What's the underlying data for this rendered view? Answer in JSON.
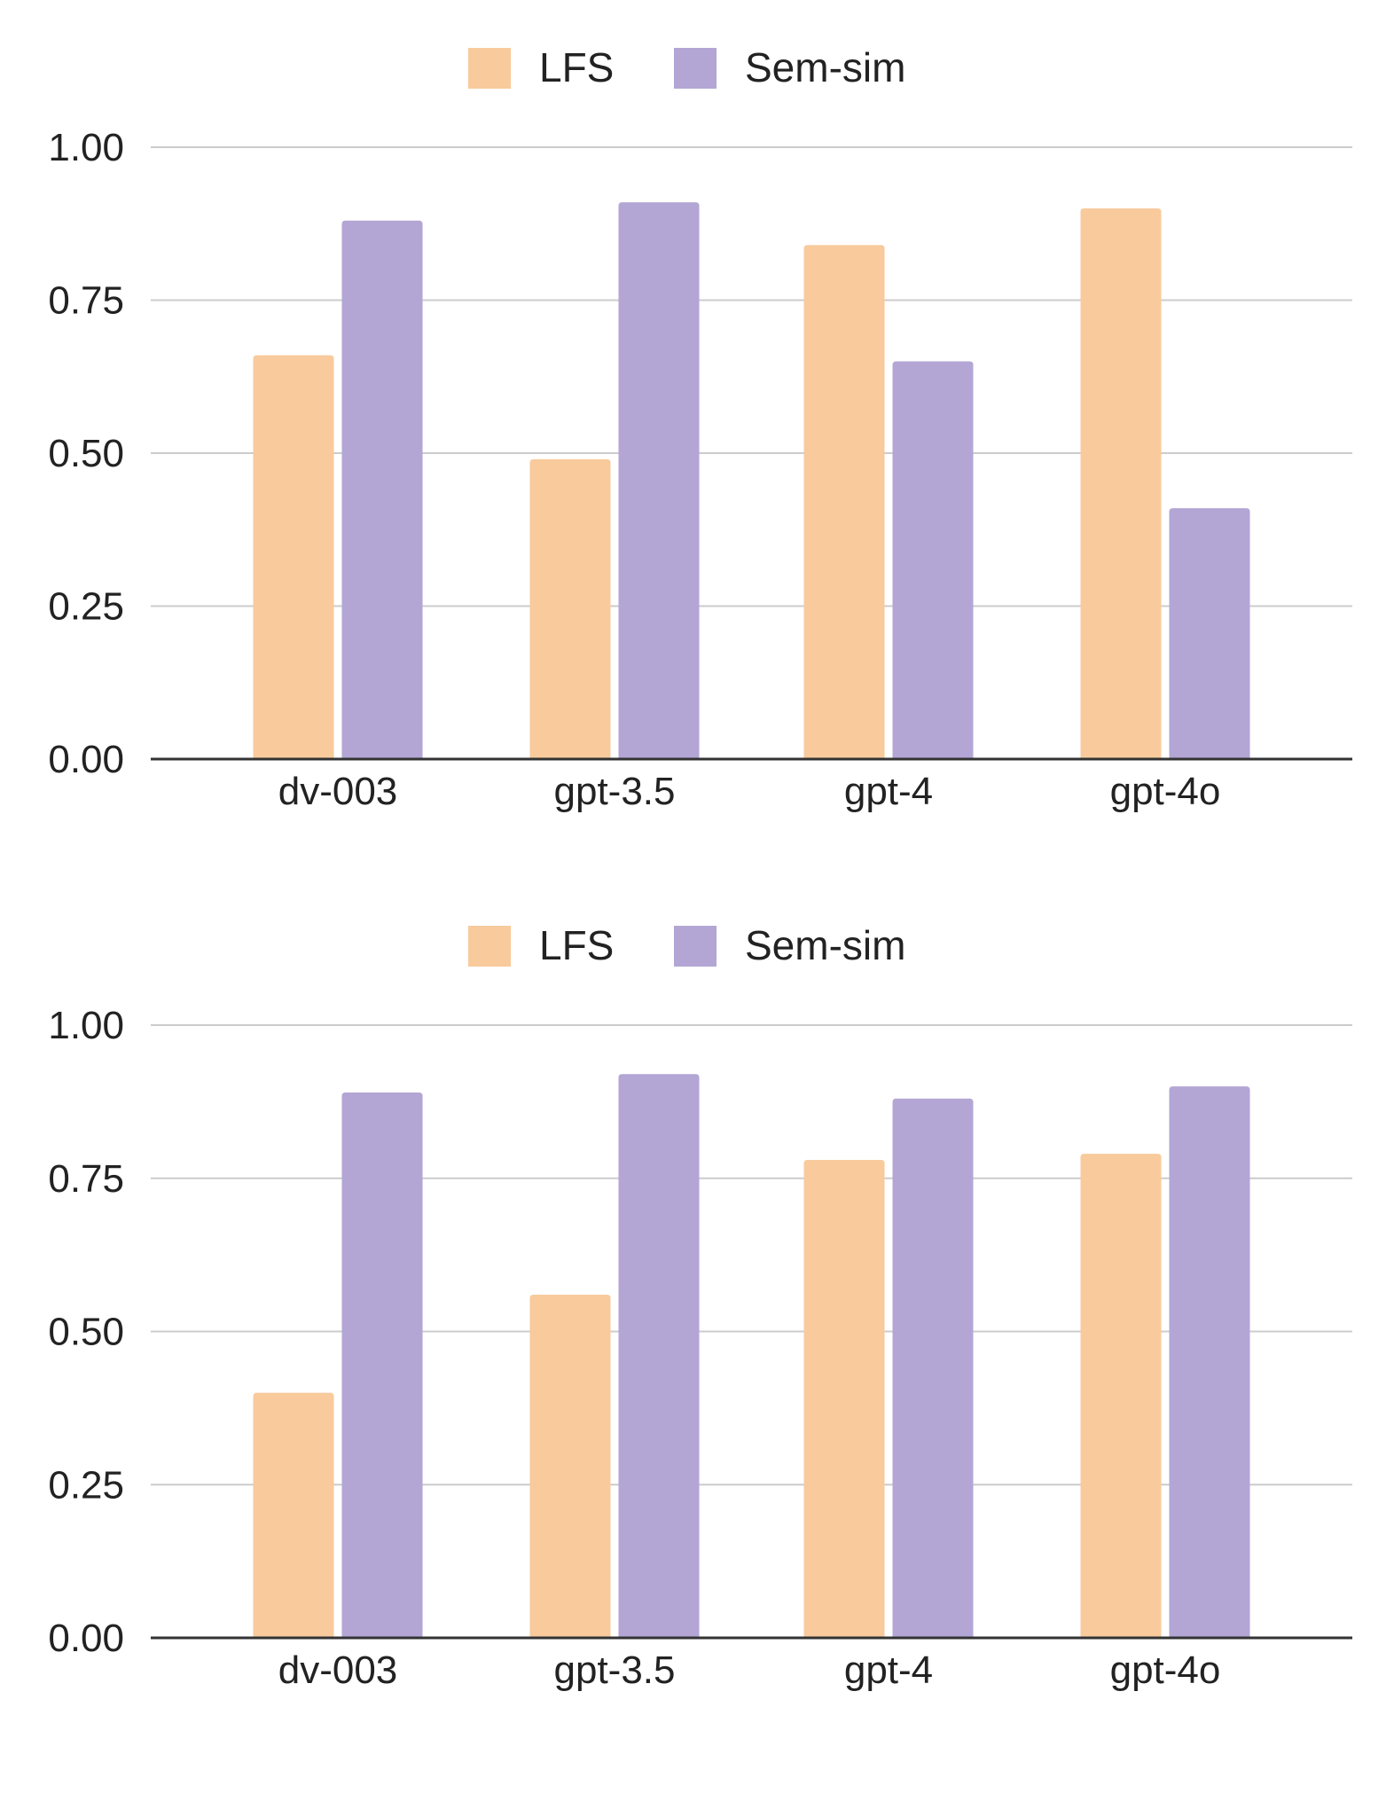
{
  "chart_data": [
    {
      "type": "bar",
      "title": "",
      "xlabel": "",
      "ylabel": "",
      "categories": [
        "dv-003",
        "gpt-3.5",
        "gpt-4",
        "gpt-4o"
      ],
      "series": [
        {
          "name": "LFS",
          "color": "#f8ca9c",
          "values": [
            0.66,
            0.49,
            0.84,
            0.9
          ]
        },
        {
          "name": "Sem-sim",
          "color": "#b3a6d5",
          "values": [
            0.88,
            0.91,
            0.65,
            0.41
          ]
        }
      ],
      "ylim": [
        0,
        1
      ],
      "yticks": [
        "0.00",
        "0.25",
        "0.50",
        "0.75",
        "1.00"
      ],
      "ytick_values": [
        0,
        0.25,
        0.5,
        0.75,
        1.0
      ],
      "grid": true,
      "legend_position": "top-center"
    },
    {
      "type": "bar",
      "title": "",
      "xlabel": "",
      "ylabel": "",
      "categories": [
        "dv-003",
        "gpt-3.5",
        "gpt-4",
        "gpt-4o"
      ],
      "series": [
        {
          "name": "LFS",
          "color": "#f8ca9c",
          "values": [
            0.4,
            0.56,
            0.78,
            0.79
          ]
        },
        {
          "name": "Sem-sim",
          "color": "#b3a6d5",
          "values": [
            0.89,
            0.92,
            0.88,
            0.9
          ]
        }
      ],
      "ylim": [
        0,
        1
      ],
      "yticks": [
        "0.00",
        "0.25",
        "0.50",
        "0.75",
        "1.00"
      ],
      "ytick_values": [
        0,
        0.25,
        0.5,
        0.75,
        1.0
      ],
      "grid": true,
      "legend_position": "top-center"
    }
  ]
}
